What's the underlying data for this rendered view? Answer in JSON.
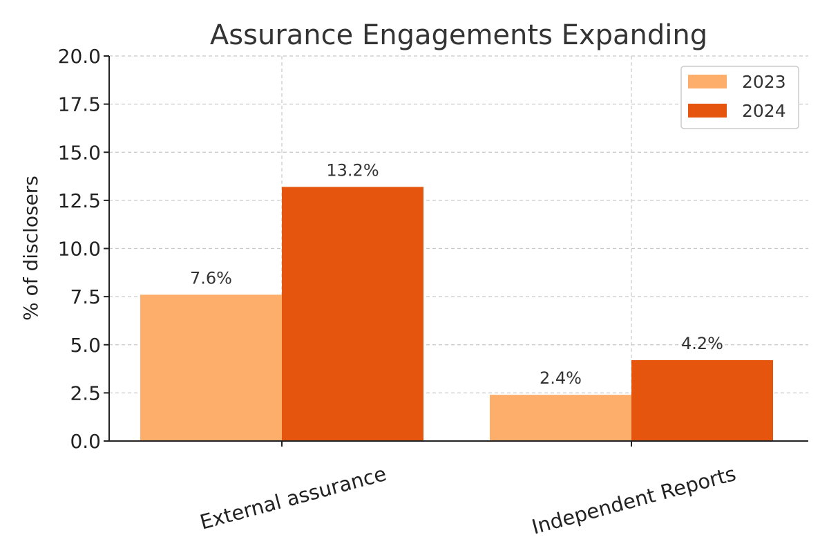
{
  "chart_data": {
    "type": "bar",
    "title": "Assurance Engagements Expanding",
    "xlabel": "",
    "ylabel": "% of disclosers",
    "categories": [
      "External assurance",
      "Independent Reports"
    ],
    "series": [
      {
        "name": "2023",
        "values": [
          7.6,
          2.4
        ],
        "labels": [
          "7.6%",
          "2.4%"
        ],
        "color": "#FDAE6B"
      },
      {
        "name": "2024",
        "values": [
          13.2,
          4.2
        ],
        "labels": [
          "13.2%",
          "4.2%"
        ],
        "color": "#E6550D"
      }
    ],
    "ylim": [
      0,
      20
    ],
    "yticks": [
      "0.0",
      "2.5",
      "5.0",
      "7.5",
      "10.0",
      "12.5",
      "15.0",
      "17.5",
      "20.0"
    ],
    "grid": true,
    "legend_position": "top-right"
  }
}
